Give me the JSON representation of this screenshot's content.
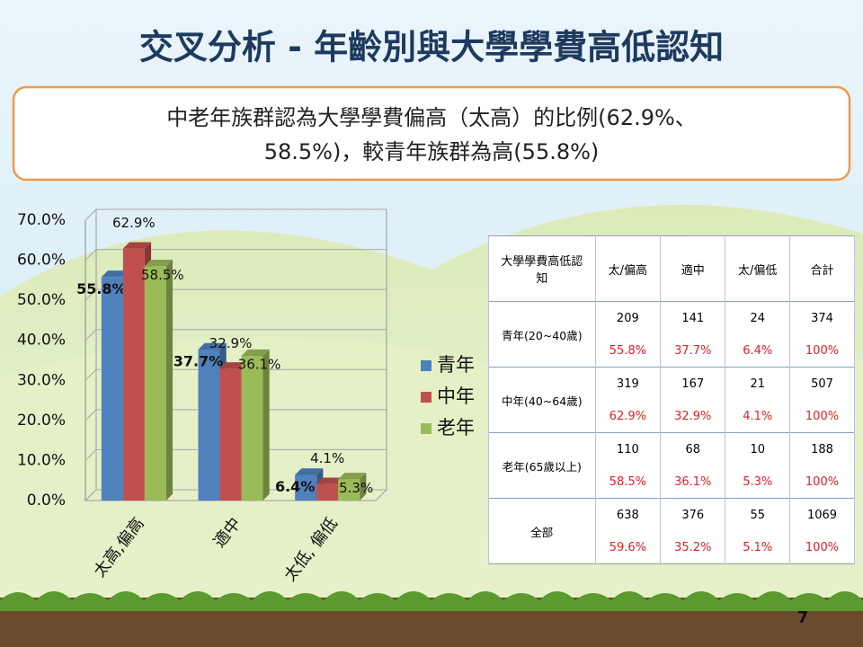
{
  "title": "交叉分析 - 年齡別與大學學費高低認知",
  "callout": [
    "中老年族群認為大學學費偏高（太高）的比例(62.9%、",
    "58.5%)，較青年族群為高(55.8%)"
  ],
  "chart_data": {
    "type": "bar3d",
    "categories": [
      "太高,偏高",
      "適中",
      "太低, 偏低"
    ],
    "series": [
      {
        "name": "青年",
        "color": "#4f81bd",
        "values": [
          55.8,
          37.7,
          6.4
        ],
        "value_labels": [
          "55.8%",
          "37.7%",
          "6.4%"
        ]
      },
      {
        "name": "中年",
        "color": "#c0504d",
        "values": [
          62.9,
          32.9,
          4.1
        ],
        "value_labels": [
          "62.9%",
          "32.9%",
          "4.1%"
        ]
      },
      {
        "name": "老年",
        "color": "#9bbb59",
        "values": [
          58.5,
          36.1,
          5.3
        ],
        "value_labels": [
          "58.5%",
          "36.1%",
          "5.3%"
        ]
      }
    ],
    "ylim": [
      0,
      70
    ],
    "yticks": [
      {
        "value": 0,
        "label": "0.0%"
      },
      {
        "value": 10,
        "label": "10.0%"
      },
      {
        "value": 20,
        "label": "20.0%"
      },
      {
        "value": 30,
        "label": "30.0%"
      },
      {
        "value": 40,
        "label": "40.0%"
      },
      {
        "value": 50,
        "label": "50.0%"
      },
      {
        "value": 60,
        "label": "60.0%"
      },
      {
        "value": 70,
        "label": "70.0%"
      }
    ],
    "grid": true,
    "legend": "right"
  },
  "table": {
    "header": [
      "大學學費高低認知",
      "太/偏高",
      "適中",
      "太/偏低",
      "合計"
    ],
    "rows": [
      {
        "group": "青年(20~40歲)",
        "counts": [
          209,
          141,
          24,
          374
        ],
        "percents": [
          "55.8%",
          "37.7%",
          "6.4%",
          "100%"
        ]
      },
      {
        "group": "中年(40~64歲)",
        "counts": [
          319,
          167,
          21,
          507
        ],
        "percents": [
          "62.9%",
          "32.9%",
          "4.1%",
          "100%"
        ]
      },
      {
        "group": "老年(65歲以上)",
        "counts": [
          110,
          68,
          10,
          188
        ],
        "percents": [
          "58.5%",
          "36.1%",
          "5.3%",
          "100%"
        ]
      },
      {
        "group": "全部",
        "counts": [
          638,
          376,
          55,
          1069
        ],
        "percents": [
          "59.6%",
          "35.2%",
          "5.1%",
          "100%"
        ]
      }
    ]
  },
  "page_number": "7"
}
